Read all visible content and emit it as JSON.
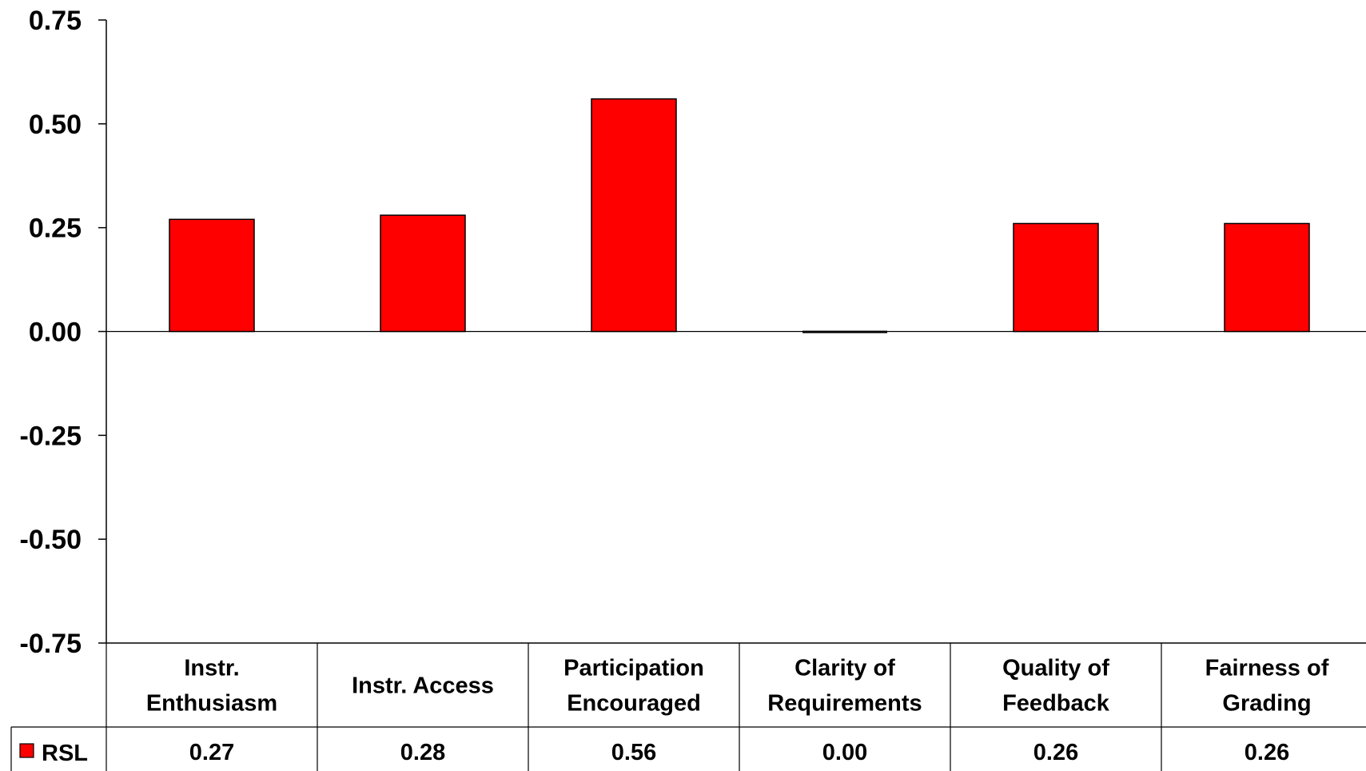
{
  "chart_data": {
    "type": "bar",
    "title": "",
    "xlabel": "",
    "ylabel": "",
    "categories": [
      [
        "Instr.",
        "Enthusiasm"
      ],
      [
        "Instr. Access"
      ],
      [
        "Participation",
        "Encouraged"
      ],
      [
        "Clarity of",
        "Requirements"
      ],
      [
        "Quality of",
        "Feedback"
      ],
      [
        "Fairness of",
        "Grading"
      ]
    ],
    "series": [
      {
        "name": "RSL",
        "color": "#ff0000",
        "values": [
          0.27,
          0.28,
          0.56,
          0.0,
          0.26,
          0.26
        ],
        "value_labels": [
          "0.27",
          "0.28",
          "0.56",
          "0.00",
          "0.26",
          "0.26"
        ]
      }
    ],
    "ylim": [
      -0.75,
      0.75
    ],
    "y_ticks": [
      "0.75",
      "0.50",
      "0.25",
      "0.00",
      "-0.25",
      "-0.50",
      "-0.75"
    ],
    "grid": false,
    "legend": "data-table-left"
  }
}
